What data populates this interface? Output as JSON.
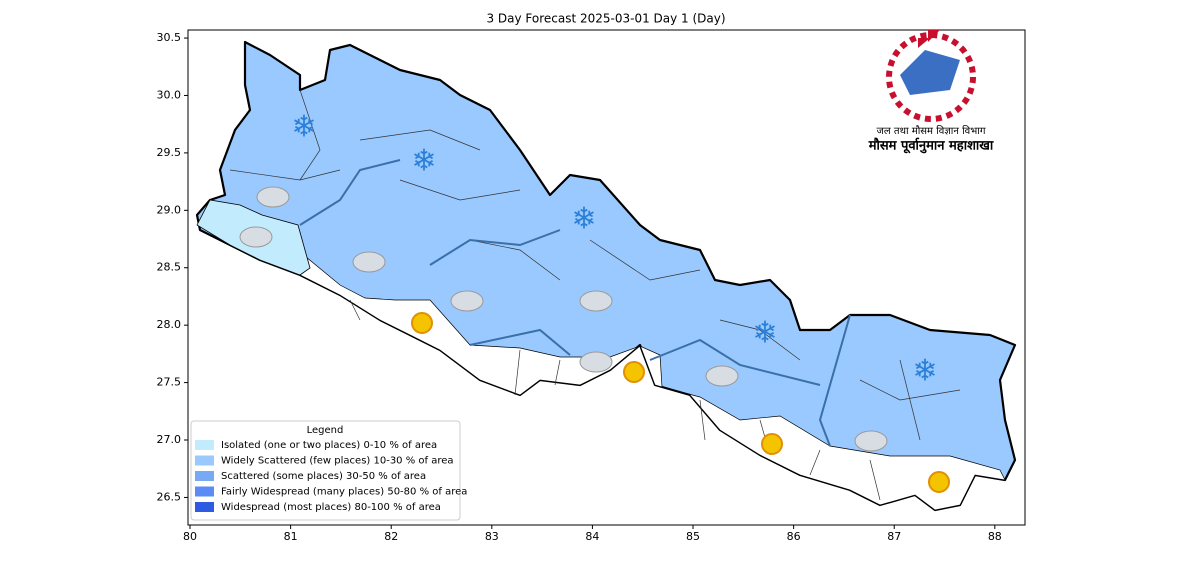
{
  "map": {
    "title": "3 Day Forecast 2025-03-01 Day 1 (Day)",
    "xlim": [
      79.98,
      88.3
    ],
    "ylim": [
      26.26,
      30.57
    ],
    "xticks": [
      80,
      81,
      82,
      83,
      84,
      85,
      86,
      87,
      88
    ],
    "yticks": [
      {
        "value": 26.5,
        "label": "26.5"
      },
      {
        "value": 27,
        "label": "27.0"
      },
      {
        "value": 27.5,
        "label": "27.5"
      },
      {
        "value": 28,
        "label": "28.0"
      },
      {
        "value": 28.5,
        "label": "28.5"
      },
      {
        "value": 29,
        "label": "29.0"
      },
      {
        "value": 29.5,
        "label": "29.5"
      },
      {
        "value": 30,
        "label": "30.0"
      },
      {
        "value": 30.5,
        "label": "30.5"
      }
    ]
  },
  "legend": {
    "title": "Legend",
    "items": [
      {
        "label": "Isolated (one or two places)  0-10 % of area",
        "color": "#c2ecfd"
      },
      {
        "label": "Widely Scattered (few places) 10-30 % of area",
        "color": "#99c9ff"
      },
      {
        "label": "Scattered (some places) 30-50  % of area",
        "color": "#78a9f5"
      },
      {
        "label": "Fairly Widespread (many places) 50-80 % of area",
        "color": "#5b8bf5"
      },
      {
        "label": "Widespread (most places) 80-100 % of area",
        "color": "#2f5be3"
      }
    ]
  },
  "logo": {
    "line1": "जल तथा मौसम विज्ञान विभाग",
    "line2": "मौसम पूर्वानुमान महाशाखा"
  }
}
